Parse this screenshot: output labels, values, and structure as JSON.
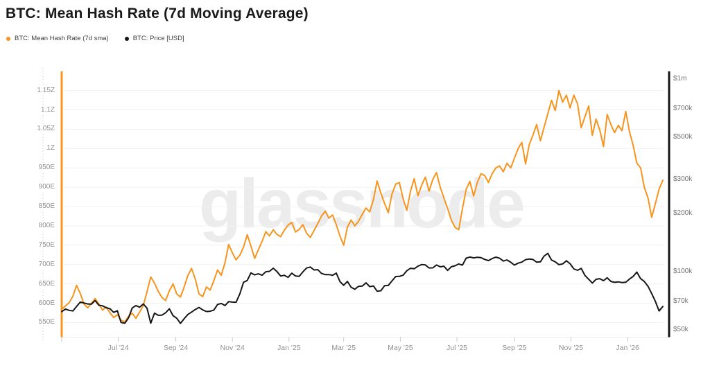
{
  "page": {
    "title": "BTC: Mean Hash Rate (7d Moving Average)"
  },
  "watermark": "glassnode",
  "legend": {
    "items": [
      {
        "label": "BTC: Mean Hash Rate (7d sma)",
        "color": "#f7941d"
      },
      {
        "label": "BTC: Price [USD]",
        "color": "#161616"
      }
    ]
  },
  "chart_data": {
    "type": "line",
    "title": "BTC: Mean Hash Rate (7d Moving Average)",
    "start_date": "2024-05-01",
    "end_date": "2026-02-08",
    "step_days": 4,
    "grid": "horizontal-only",
    "legend_position": "top-left",
    "x_ticks": [
      {
        "date": "2024-05-01",
        "label": ""
      },
      {
        "date": "2024-07-01",
        "label": "Jul '24"
      },
      {
        "date": "2024-09-01",
        "label": "Sep '24"
      },
      {
        "date": "2024-11-01",
        "label": "Nov '24"
      },
      {
        "date": "2025-01-01",
        "label": "Jan '25"
      },
      {
        "date": "2025-03-01",
        "label": "Mar '25"
      },
      {
        "date": "2025-05-01",
        "label": "May '25"
      },
      {
        "date": "2025-07-01",
        "label": "Jul '25"
      },
      {
        "date": "2025-09-01",
        "label": "Sep '25"
      },
      {
        "date": "2025-11-01",
        "label": "Nov '25"
      },
      {
        "date": "2026-01-01",
        "label": "Jan '26"
      }
    ],
    "left_axis": {
      "scale": "linear",
      "unit": "EH/s",
      "range": [
        550,
        1150
      ],
      "ticks": [
        {
          "value": 1150,
          "label": "1.15Z"
        },
        {
          "value": 1100,
          "label": "1.1Z"
        },
        {
          "value": 1050,
          "label": "1.05Z"
        },
        {
          "value": 1000,
          "label": "1Z"
        },
        {
          "value": 950,
          "label": "950E"
        },
        {
          "value": 900,
          "label": "900E"
        },
        {
          "value": 850,
          "label": "850E"
        },
        {
          "value": 800,
          "label": "800E"
        },
        {
          "value": 750,
          "label": "750E"
        },
        {
          "value": 700,
          "label": "700E"
        },
        {
          "value": 650,
          "label": "650E"
        },
        {
          "value": 600,
          "label": "600E"
        },
        {
          "value": 550,
          "label": "550E"
        }
      ]
    },
    "right_axis": {
      "scale": "log",
      "unit": "USD",
      "range": [
        50000,
        1000000
      ],
      "ticks": [
        {
          "value": 1000,
          "label": "$1m"
        },
        {
          "value": 700,
          "label": "$700k"
        },
        {
          "value": 500,
          "label": "$500k"
        },
        {
          "value": 300,
          "label": "$300k"
        },
        {
          "value": 200,
          "label": "$200k"
        },
        {
          "value": 100,
          "label": "$100k"
        },
        {
          "value": 70,
          "label": "$70k"
        },
        {
          "value": 50,
          "label": "$50k"
        }
      ]
    },
    "series": [
      {
        "name": "BTC: Mean Hash Rate (7d sma)",
        "axis": "left",
        "unit": "EH/s",
        "color": "#f7941d",
        "values": [
          584,
          593,
          601,
          618,
          646,
          625,
          598,
          588,
          600,
          612,
          598,
          582,
          590,
          575,
          563,
          570,
          556,
          552,
          566,
          574,
          561,
          577,
          594,
          630,
          668,
          652,
          631,
          615,
          607,
          632,
          650,
          624,
          616,
          642,
          672,
          690,
          662,
          624,
          617,
          642,
          634,
          658,
          686,
          672,
          705,
          752,
          730,
          712,
          724,
          745,
          777,
          748,
          716,
          738,
          760,
          785,
          774,
          790,
          778,
          772,
          789,
          802,
          809,
          784,
          791,
          803,
          781,
          770,
          788,
          806,
          825,
          838,
          820,
          828,
          803,
          773,
          750,
          797,
          815,
          800,
          812,
          830,
          846,
          836,
          868,
          916,
          885,
          858,
          834,
          882,
          908,
          912,
          870,
          840,
          890,
          922,
          878,
          905,
          926,
          890,
          920,
          938,
          900,
          872,
          845,
          815,
          796,
          790,
          845,
          895,
          915,
          877,
          912,
          935,
          930,
          912,
          935,
          950,
          955,
          940,
          962,
          950,
          975,
          1000,
          1016,
          960,
          1010,
          1035,
          1062,
          1020,
          1055,
          1090,
          1125,
          1098,
          1150,
          1120,
          1138,
          1105,
          1138,
          1116,
          1054,
          1082,
          1110,
          1034,
          1076,
          1048,
          1005,
          1088,
          1062,
          1041,
          1060,
          1046,
          1096,
          1044,
          1008,
          962,
          950,
          900,
          872,
          822,
          858,
          895,
          918
        ]
      },
      {
        "name": "BTC: Price [USD]",
        "axis": "right",
        "unit": "USD (thousands)",
        "color": "#161616",
        "values": [
          62,
          64,
          63,
          62.5,
          66,
          69.5,
          68.8,
          68,
          67.8,
          70.8,
          67,
          66.5,
          65,
          64.2,
          61.5,
          62.7,
          54.5,
          54,
          57.5,
          64.8,
          66.7,
          65.4,
          68,
          64.6,
          54,
          60.9,
          59.4,
          59.5,
          61.2,
          64.2,
          59.1,
          57.3,
          53.9,
          57,
          60,
          61.7,
          63.6,
          65.2,
          63.3,
          62.1,
          62.3,
          63.2,
          67.6,
          68.4,
          66.7,
          69.9,
          69.5,
          69.4,
          76.7,
          88,
          90,
          98.5,
          96.3,
          97.5,
          95.9,
          99.9,
          100.4,
          104.2,
          100.2,
          94.9,
          95.8,
          93.4,
          98.2,
          95,
          94.5,
          99.8,
          104.5,
          105.7,
          102.1,
          102.4,
          98,
          96.5,
          96.6,
          95.8,
          98.3,
          88.7,
          85,
          89,
          83,
          81.1,
          83.9,
          84.2,
          87.5,
          83.6,
          84.3,
          79.2,
          79.6,
          84.5,
          84.9,
          89.5,
          94.4,
          94.5,
          95.9,
          101.1,
          104.1,
          103.5,
          106.8,
          108.9,
          108.4,
          104.6,
          104.7,
          108.3,
          106,
          106.8,
          101.5,
          106.1,
          107.3,
          109.6,
          108.2,
          117.6,
          119.1,
          117.9,
          118.8,
          118.2,
          115.8,
          114.2,
          116.9,
          119,
          117.4,
          113.5,
          115,
          111.9,
          108.2,
          110.7,
          112.1,
          115.4,
          116.4,
          115.7,
          112,
          112.5,
          120.5,
          124.4,
          115,
          112.5,
          108.7,
          109.7,
          113.9,
          110,
          103.4,
          101.7,
          104,
          95.6,
          91.4,
          87.3,
          91.3,
          92,
          89.8,
          93,
          89,
          88,
          88.5,
          87.8,
          88.1,
          91.5,
          94.5,
          99.5,
          92,
          89,
          84,
          77,
          70,
          62.5,
          66
        ]
      }
    ]
  }
}
